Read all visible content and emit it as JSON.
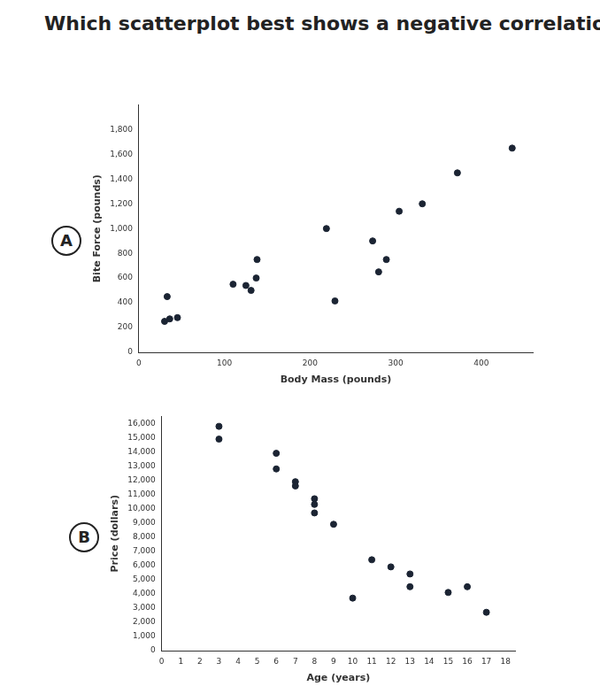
{
  "question": "Which scatterplot best shows a negative correlation?",
  "chart_data": [
    {
      "type": "scatter",
      "option": "A",
      "x_label": "Body Mass (pounds)",
      "y_label": "Bite Force (pounds)",
      "x": [
        30,
        33,
        36,
        45,
        110,
        125,
        131,
        137,
        138,
        219,
        229,
        273,
        280,
        289,
        304,
        331,
        372,
        436
      ],
      "values": [
        250,
        450,
        270,
        280,
        550,
        540,
        500,
        600,
        750,
        1000,
        415,
        900,
        650,
        750,
        1140,
        1200,
        1450,
        1650
      ],
      "xlim": [
        0,
        460
      ],
      "xticks": [
        0,
        100,
        200,
        300,
        400
      ],
      "ylim": [
        0,
        2000
      ],
      "yticks": [
        0,
        200,
        400,
        600,
        800,
        1000,
        1200,
        1400,
        1600,
        1800
      ],
      "color": "#1b2433",
      "marker": "circle",
      "grid": false
    },
    {
      "type": "scatter",
      "option": "B",
      "x_label": "Age (years)",
      "y_label": "Price (dollars)",
      "x": [
        3,
        3,
        6,
        6,
        7,
        7,
        8,
        8,
        8,
        9,
        10,
        11,
        12,
        13,
        13,
        15,
        16,
        17
      ],
      "values": [
        15800,
        14900,
        13900,
        12800,
        11900,
        11600,
        10700,
        10300,
        9700,
        8900,
        3700,
        6400,
        5900,
        5400,
        4500,
        4100,
        4500,
        2700
      ],
      "xlim": [
        0,
        18.5
      ],
      "xticks": [
        0,
        1,
        2,
        3,
        4,
        5,
        6,
        7,
        8,
        9,
        10,
        11,
        12,
        13,
        14,
        15,
        16,
        17,
        18
      ],
      "ylim": [
        0,
        16500
      ],
      "yticks": [
        0,
        1000,
        2000,
        3000,
        4000,
        5000,
        6000,
        7000,
        8000,
        9000,
        10000,
        11000,
        12000,
        13000,
        14000,
        15000,
        16000
      ],
      "color": "#1b2433",
      "marker": "circle",
      "grid": false
    }
  ]
}
